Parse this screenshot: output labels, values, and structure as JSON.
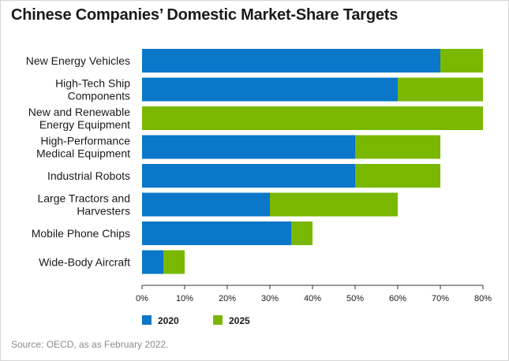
{
  "title": "Chinese Companies’ Domestic Market-Share Targets",
  "source": "Source: OECD, as as February 2022.",
  "chart_data": {
    "type": "bar",
    "orientation": "horizontal",
    "stacked": true,
    "categories": [
      [
        "New Energy Vehicles"
      ],
      [
        "High-Tech Ship",
        "Components"
      ],
      [
        "New and Renewable",
        "Energy Equipment"
      ],
      [
        "High-Performance",
        "Medical Equipment"
      ],
      [
        "Industrial Robots"
      ],
      [
        "Large Tractors and",
        "Harvesters"
      ],
      [
        "Mobile Phone Chips"
      ],
      [
        "Wide-Body Aircraft"
      ]
    ],
    "series": [
      {
        "name": "2020",
        "color": "#0a77c8",
        "values": [
          70,
          60,
          0,
          50,
          50,
          30,
          35,
          5
        ]
      },
      {
        "name": "2025",
        "color": "#7ab800",
        "values": [
          10,
          20,
          80,
          20,
          20,
          30,
          5,
          5
        ]
      }
    ],
    "xlim": [
      0,
      80
    ],
    "xticks": [
      0,
      10,
      20,
      30,
      40,
      50,
      60,
      70,
      80
    ],
    "tick_suffix": "%",
    "legend_position": "bottom-left",
    "grid": false
  }
}
